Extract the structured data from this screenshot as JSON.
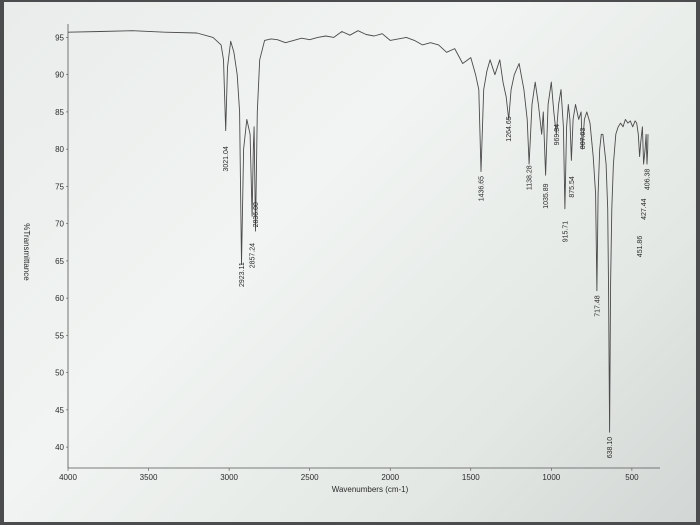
{
  "chart_data": {
    "type": "line",
    "title": "",
    "xlabel": "Wavenumbers (cm-1)",
    "ylabel": "%Transmittance",
    "xlim": [
      4000,
      400
    ],
    "ylim": [
      38,
      96
    ],
    "x_ticks": [
      "4000",
      "3500",
      "3000",
      "2500",
      "2000",
      "1500",
      "1000",
      "500"
    ],
    "y_ticks": [
      "95",
      "90",
      "85",
      "80",
      "75",
      "70",
      "65",
      "60",
      "55",
      "50",
      "45",
      "40"
    ],
    "series": [
      {
        "x": [
          4000,
          3800,
          3600,
          3400,
          3200,
          3100,
          3050,
          3035,
          3021.04,
          3010,
          2990,
          2970,
          2950,
          2935,
          2923.11,
          2910,
          2890,
          2870,
          2857.24,
          2850,
          2845,
          2836.0,
          2825,
          2810,
          2780,
          2740,
          2700,
          2650,
          2600,
          2550,
          2500,
          2450,
          2400,
          2350,
          2300,
          2250,
          2200,
          2150,
          2100,
          2050,
          2000,
          1950,
          1900,
          1850,
          1800,
          1750,
          1700,
          1650,
          1600,
          1550,
          1500,
          1470,
          1450,
          1436.65,
          1420,
          1400,
          1380,
          1350,
          1320,
          1300,
          1280,
          1264.65,
          1250,
          1230,
          1200,
          1170,
          1150,
          1138.28,
          1120,
          1100,
          1080,
          1060,
          1050,
          1035.89,
          1020,
          1000,
          985,
          969.34,
          955,
          940,
          925,
          915.71,
          905,
          895,
          885,
          875.54,
          865,
          850,
          830,
          815,
          807.63,
          795,
          780,
          760,
          740,
          725,
          717.48,
          710,
          700,
          690,
          680,
          670,
          660,
          650,
          645,
          638.1,
          632,
          625,
          615,
          600,
          585,
          570,
          555,
          540,
          525,
          510,
          495,
          480,
          470,
          460,
          451.86,
          445,
          435,
          427.44,
          418,
          412,
          406.38,
          402,
          400
        ],
        "y": [
          95.7,
          95.8,
          95.9,
          95.7,
          95.6,
          95.0,
          94.0,
          92.0,
          82.5,
          91.0,
          94.5,
          93.0,
          90.0,
          85.0,
          64.5,
          80.0,
          84.0,
          82.0,
          71.0,
          80.0,
          83.0,
          69.0,
          85.0,
          92.0,
          94.6,
          94.8,
          94.7,
          94.3,
          94.6,
          94.9,
          94.7,
          95.0,
          95.2,
          95.0,
          95.8,
          95.3,
          95.9,
          95.4,
          95.2,
          95.5,
          94.6,
          94.8,
          95.0,
          94.6,
          94.0,
          94.3,
          94.0,
          93.0,
          93.5,
          91.5,
          92.3,
          90.0,
          88.0,
          77.0,
          88.0,
          90.5,
          92.0,
          90.0,
          92.0,
          89.0,
          87.0,
          84.0,
          88.0,
          90.0,
          91.5,
          88.0,
          84.0,
          78.0,
          86.0,
          89.0,
          86.0,
          82.0,
          85.0,
          76.5,
          86.0,
          89.0,
          85.0,
          82.0,
          86.0,
          88.0,
          83.0,
          72.0,
          83.0,
          86.0,
          84.0,
          78.5,
          84.0,
          86.0,
          84.0,
          85.0,
          80.0,
          84.0,
          85.0,
          83.5,
          79.0,
          74.0,
          61.0,
          74.0,
          80.0,
          82.0,
          82.0,
          80.0,
          78.0,
          72.0,
          62.0,
          42.0,
          62.0,
          72.0,
          78.0,
          82.0,
          83.0,
          83.5,
          83.0,
          84.0,
          83.5,
          83.8,
          83.0,
          83.8,
          83.5,
          82.0,
          79.0,
          81.0,
          83.0,
          78.0,
          80.0,
          82.0,
          78.0,
          80.0,
          82.0
        ]
      }
    ],
    "peak_labels": [
      {
        "x": 3021.04,
        "text": "3021.04",
        "y": 77.0
      },
      {
        "x": 2923.11,
        "text": "2923.11",
        "y": 61.5
      },
      {
        "x": 2857.24,
        "text": "2857.24",
        "y": 64.0
      },
      {
        "x": 2836.0,
        "text": "2836.00",
        "y": 69.5
      },
      {
        "x": 1436.65,
        "text": "1436.65",
        "y": 73.0
      },
      {
        "x": 1264.65,
        "text": "1264.65",
        "y": 81.0
      },
      {
        "x": 1138.28,
        "text": "1138.28",
        "y": 74.5
      },
      {
        "x": 1035.89,
        "text": "1035.89",
        "y": 72.0
      },
      {
        "x": 969.34,
        "text": "969.34",
        "y": 80.5
      },
      {
        "x": 915.71,
        "text": "915.71",
        "y": 67.5
      },
      {
        "x": 875.54,
        "text": "875.54",
        "y": 73.5
      },
      {
        "x": 807.63,
        "text": "807.63",
        "y": 80.0
      },
      {
        "x": 717.48,
        "text": "717.48",
        "y": 57.5
      },
      {
        "x": 638.1,
        "text": "638.10",
        "y": 38.5
      },
      {
        "x": 451.86,
        "text": "451.86",
        "y": 65.5
      },
      {
        "x": 427.44,
        "text": "427.44",
        "y": 70.5
      },
      {
        "x": 406.38,
        "text": "406.38",
        "y": 74.5
      }
    ],
    "grid": false,
    "color": "#4b4b4b"
  }
}
